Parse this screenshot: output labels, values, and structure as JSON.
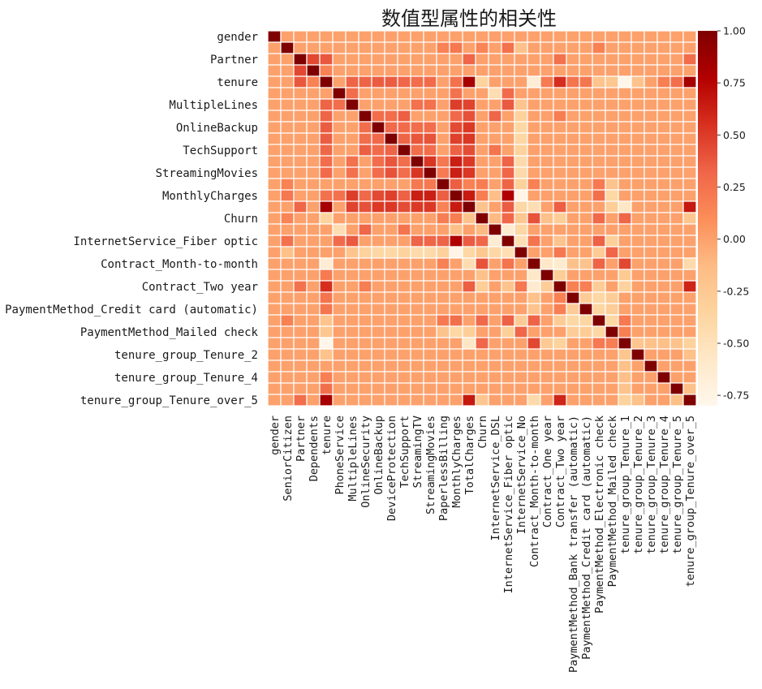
{
  "chart_data": {
    "type": "heatmap",
    "title": "数值型属性的相关性",
    "xlabel": "",
    "ylabel": "",
    "colormap": "OrRd",
    "colorbar_range": [
      -0.8,
      1.0
    ],
    "colorbar_ticks": [
      "1.00",
      "0.75",
      "0.50",
      "0.25",
      "0.00",
      "-0.25",
      "-0.50",
      "-0.75"
    ],
    "colorbar_tick_values": [
      1.0,
      0.75,
      0.5,
      0.25,
      0.0,
      -0.25,
      -0.5,
      -0.75
    ],
    "variables": [
      "gender",
      "SeniorCitizen",
      "Partner",
      "Dependents",
      "tenure",
      "PhoneService",
      "MultipleLines",
      "OnlineSecurity",
      "OnlineBackup",
      "DeviceProtection",
      "TechSupport",
      "StreamingTV",
      "StreamingMovies",
      "PaperlessBilling",
      "MonthlyCharges",
      "TotalCharges",
      "Churn",
      "InternetService_DSL",
      "InternetService_Fiber optic",
      "InternetService_No",
      "Contract_Month-to-month",
      "Contract_One year",
      "Contract_Two year",
      "PaymentMethod_Bank transfer (automatic)",
      "PaymentMethod_Credit card (automatic)",
      "PaymentMethod_Electronic check",
      "PaymentMethod_Mailed check",
      "tenure_group_Tenure_1",
      "tenure_group_Tenure_2",
      "tenure_group_Tenure_3",
      "tenure_group_Tenure_4",
      "tenure_group_Tenure_5",
      "tenure_group_Tenure_over_5"
    ],
    "y_tick_labels": [
      "gender",
      "Partner",
      "tenure",
      "MultipleLines",
      "OnlineBackup",
      "TechSupport",
      "StreamingMovies",
      "MonthlyCharges",
      "Churn",
      "InternetService_Fiber optic",
      "Contract_Month-to-month",
      "Contract_Two year",
      "PaymentMethod_Credit card (automatic)",
      "PaymentMethod_Mailed check",
      "tenure_group_Tenure_2",
      "tenure_group_Tenure_4",
      "tenure_group_Tenure_over_5"
    ],
    "y_tick_indices": [
      0,
      2,
      4,
      6,
      8,
      10,
      12,
      14,
      16,
      18,
      20,
      22,
      24,
      26,
      28,
      30,
      32
    ],
    "x_tick_labels": [
      "gender",
      "SeniorCitizen",
      "Partner",
      "Dependents",
      "tenure",
      "PhoneService",
      "MultipleLines",
      "OnlineSecurity",
      "OnlineBackup",
      "DeviceProtection",
      "TechSupport",
      "StreamingTV",
      "StreamingMovies",
      "PaperlessBilling",
      "MonthlyCharges",
      "TotalCharges",
      "Churn",
      "InternetService_DSL",
      "InternetService_Fiber optic",
      "InternetService_No",
      "Contract_Month-to-month",
      "Contract_One year",
      "Contract_Two year",
      "PaymentMethod_Bank transfer (automatic)",
      "PaymentMethod_Credit card (automatic)",
      "PaymentMethod_Electronic check",
      "PaymentMethod_Mailed check",
      "tenure_group_Tenure_1",
      "tenure_group_Tenure_2",
      "tenure_group_Tenure_3",
      "tenure_group_Tenure_4",
      "tenure_group_Tenure_5",
      "tenure_group_Tenure_over_5"
    ],
    "correlations": [
      {
        "a": "SeniorCitizen",
        "b": "PaperlessBilling",
        "r": 0.16
      },
      {
        "a": "SeniorCitizen",
        "b": "MonthlyCharges",
        "r": 0.22
      },
      {
        "a": "SeniorCitizen",
        "b": "Churn",
        "r": 0.15
      },
      {
        "a": "SeniorCitizen",
        "b": "InternetService_Fiber optic",
        "r": 0.26
      },
      {
        "a": "SeniorCitizen",
        "b": "InternetService_No",
        "r": -0.18
      },
      {
        "a": "SeniorCitizen",
        "b": "PaymentMethod_Electronic check",
        "r": 0.17
      },
      {
        "a": "Partner",
        "b": "Dependents",
        "r": 0.45
      },
      {
        "a": "Partner",
        "b": "tenure",
        "r": 0.38
      },
      {
        "a": "Partner",
        "b": "TotalCharges",
        "r": 0.32
      },
      {
        "a": "Partner",
        "b": "Contract_Two year",
        "r": 0.25
      },
      {
        "a": "Partner",
        "b": "tenure_group_Tenure_over_5",
        "r": 0.28
      },
      {
        "a": "Dependents",
        "b": "tenure",
        "r": 0.16
      },
      {
        "a": "tenure",
        "b": "MultipleLines",
        "r": 0.33
      },
      {
        "a": "tenure",
        "b": "OnlineSecurity",
        "r": 0.33
      },
      {
        "a": "tenure",
        "b": "OnlineBackup",
        "r": 0.36
      },
      {
        "a": "tenure",
        "b": "DeviceProtection",
        "r": 0.36
      },
      {
        "a": "tenure",
        "b": "TechSupport",
        "r": 0.32
      },
      {
        "a": "tenure",
        "b": "StreamingTV",
        "r": 0.28
      },
      {
        "a": "tenure",
        "b": "StreamingMovies",
        "r": 0.29
      },
      {
        "a": "tenure",
        "b": "MonthlyCharges",
        "r": 0.25
      },
      {
        "a": "tenure",
        "b": "TotalCharges",
        "r": 0.83
      },
      {
        "a": "tenure",
        "b": "Churn",
        "r": -0.35
      },
      {
        "a": "tenure",
        "b": "Contract_Month-to-month",
        "r": -0.65
      },
      {
        "a": "tenure",
        "b": "Contract_One year",
        "r": 0.2
      },
      {
        "a": "tenure",
        "b": "Contract_Two year",
        "r": 0.56
      },
      {
        "a": "tenure",
        "b": "PaymentMethod_Bank transfer (automatic)",
        "r": 0.24
      },
      {
        "a": "tenure",
        "b": "PaymentMethod_Credit card (automatic)",
        "r": 0.23
      },
      {
        "a": "tenure",
        "b": "PaymentMethod_Electronic check",
        "r": -0.21
      },
      {
        "a": "tenure",
        "b": "PaymentMethod_Mailed check",
        "r": -0.23
      },
      {
        "a": "tenure",
        "b": "tenure_group_Tenure_1",
        "r": -0.78
      },
      {
        "a": "tenure",
        "b": "tenure_group_Tenure_2",
        "r": -0.2
      },
      {
        "a": "tenure",
        "b": "tenure_group_Tenure_4",
        "r": 0.18
      },
      {
        "a": "tenure",
        "b": "tenure_group_Tenure_5",
        "r": 0.27
      },
      {
        "a": "tenure",
        "b": "tenure_group_Tenure_over_5",
        "r": 0.83
      },
      {
        "a": "PhoneService",
        "b": "MultipleLines",
        "r": 0.28
      },
      {
        "a": "PhoneService",
        "b": "InternetService_DSL",
        "r": -0.45
      },
      {
        "a": "PhoneService",
        "b": "InternetService_Fiber optic",
        "r": 0.29
      },
      {
        "a": "PhoneService",
        "b": "MonthlyCharges",
        "r": 0.25
      },
      {
        "a": "MultipleLines",
        "b": "StreamingTV",
        "r": 0.26
      },
      {
        "a": "MultipleLines",
        "b": "StreamingMovies",
        "r": 0.26
      },
      {
        "a": "MultipleLines",
        "b": "MonthlyCharges",
        "r": 0.49
      },
      {
        "a": "MultipleLines",
        "b": "TotalCharges",
        "r": 0.47
      },
      {
        "a": "MultipleLines",
        "b": "InternetService_Fiber optic",
        "r": 0.37
      },
      {
        "a": "MultipleLines",
        "b": "InternetService_No",
        "r": -0.21
      },
      {
        "a": "OnlineSecurity",
        "b": "OnlineBackup",
        "r": 0.28
      },
      {
        "a": "OnlineSecurity",
        "b": "DeviceProtection",
        "r": 0.28
      },
      {
        "a": "OnlineSecurity",
        "b": "TechSupport",
        "r": 0.35
      },
      {
        "a": "OnlineSecurity",
        "b": "TotalCharges",
        "r": 0.41
      },
      {
        "a": "OnlineSecurity",
        "b": "MonthlyCharges",
        "r": 0.3
      },
      {
        "a": "OnlineSecurity",
        "b": "InternetService_DSL",
        "r": 0.32
      },
      {
        "a": "OnlineSecurity",
        "b": "InternetService_No",
        "r": -0.33
      },
      {
        "a": "OnlineSecurity",
        "b": "Contract_Two year",
        "r": 0.19
      },
      {
        "a": "OnlineBackup",
        "b": "DeviceProtection",
        "r": 0.3
      },
      {
        "a": "OnlineBackup",
        "b": "TechSupport",
        "r": 0.29
      },
      {
        "a": "OnlineBackup",
        "b": "StreamingTV",
        "r": 0.28
      },
      {
        "a": "OnlineBackup",
        "b": "StreamingMovies",
        "r": 0.28
      },
      {
        "a": "OnlineBackup",
        "b": "MonthlyCharges",
        "r": 0.44
      },
      {
        "a": "OnlineBackup",
        "b": "TotalCharges",
        "r": 0.51
      },
      {
        "a": "OnlineBackup",
        "b": "InternetService_No",
        "r": -0.38
      },
      {
        "a": "DeviceProtection",
        "b": "TechSupport",
        "r": 0.33
      },
      {
        "a": "DeviceProtection",
        "b": "StreamingTV",
        "r": 0.39
      },
      {
        "a": "DeviceProtection",
        "b": "StreamingMovies",
        "r": 0.4
      },
      {
        "a": "DeviceProtection",
        "b": "MonthlyCharges",
        "r": 0.48
      },
      {
        "a": "DeviceProtection",
        "b": "TotalCharges",
        "r": 0.52
      },
      {
        "a": "DeviceProtection",
        "b": "InternetService_No",
        "r": -0.38
      },
      {
        "a": "TechSupport",
        "b": "StreamingTV",
        "r": 0.28
      },
      {
        "a": "TechSupport",
        "b": "StreamingMovies",
        "r": 0.28
      },
      {
        "a": "TechSupport",
        "b": "MonthlyCharges",
        "r": 0.34
      },
      {
        "a": "TechSupport",
        "b": "TotalCharges",
        "r": 0.43
      },
      {
        "a": "TechSupport",
        "b": "InternetService_DSL",
        "r": 0.24
      },
      {
        "a": "TechSupport",
        "b": "InternetService_No",
        "r": -0.34
      },
      {
        "a": "StreamingTV",
        "b": "StreamingMovies",
        "r": 0.53
      },
      {
        "a": "StreamingTV",
        "b": "PaperlessBilling",
        "r": 0.22
      },
      {
        "a": "StreamingTV",
        "b": "MonthlyCharges",
        "r": 0.63
      },
      {
        "a": "StreamingTV",
        "b": "TotalCharges",
        "r": 0.51
      },
      {
        "a": "StreamingTV",
        "b": "InternetService_Fiber optic",
        "r": 0.33
      },
      {
        "a": "StreamingTV",
        "b": "InternetService_No",
        "r": -0.42
      },
      {
        "a": "StreamingMovies",
        "b": "PaperlessBilling",
        "r": 0.21
      },
      {
        "a": "StreamingMovies",
        "b": "MonthlyCharges",
        "r": 0.63
      },
      {
        "a": "StreamingMovies",
        "b": "TotalCharges",
        "r": 0.52
      },
      {
        "a": "StreamingMovies",
        "b": "InternetService_Fiber optic",
        "r": 0.32
      },
      {
        "a": "StreamingMovies",
        "b": "InternetService_No",
        "r": -0.42
      },
      {
        "a": "PaperlessBilling",
        "b": "MonthlyCharges",
        "r": 0.35
      },
      {
        "a": "PaperlessBilling",
        "b": "TotalCharges",
        "r": 0.16
      },
      {
        "a": "PaperlessBilling",
        "b": "Churn",
        "r": 0.19
      },
      {
        "a": "PaperlessBilling",
        "b": "InternetService_Fiber optic",
        "r": 0.33
      },
      {
        "a": "PaperlessBilling",
        "b": "InternetService_No",
        "r": -0.32
      },
      {
        "a": "PaperlessBilling",
        "b": "Contract_Month-to-month",
        "r": 0.17
      },
      {
        "a": "PaperlessBilling",
        "b": "PaymentMethod_Electronic check",
        "r": 0.21
      },
      {
        "a": "PaperlessBilling",
        "b": "PaymentMethod_Mailed check",
        "r": -0.2
      },
      {
        "a": "MonthlyCharges",
        "b": "TotalCharges",
        "r": 0.65
      },
      {
        "a": "MonthlyCharges",
        "b": "Churn",
        "r": 0.19
      },
      {
        "a": "MonthlyCharges",
        "b": "InternetService_DSL",
        "r": -0.16
      },
      {
        "a": "MonthlyCharges",
        "b": "InternetService_Fiber optic",
        "r": 0.79
      },
      {
        "a": "MonthlyCharges",
        "b": "InternetService_No",
        "r": -0.76
      },
      {
        "a": "MonthlyCharges",
        "b": "PaymentMethod_Electronic check",
        "r": 0.27
      },
      {
        "a": "MonthlyCharges",
        "b": "PaymentMethod_Mailed check",
        "r": -0.38
      },
      {
        "a": "TotalCharges",
        "b": "Churn",
        "r": -0.2
      },
      {
        "a": "TotalCharges",
        "b": "InternetService_Fiber optic",
        "r": 0.36
      },
      {
        "a": "TotalCharges",
        "b": "InternetService_No",
        "r": -0.38
      },
      {
        "a": "TotalCharges",
        "b": "Contract_Month-to-month",
        "r": -0.45
      },
      {
        "a": "TotalCharges",
        "b": "Contract_Two year",
        "r": 0.35
      },
      {
        "a": "TotalCharges",
        "b": "PaymentMethod_Mailed check",
        "r": -0.3
      },
      {
        "a": "TotalCharges",
        "b": "tenure_group_Tenure_1",
        "r": -0.56
      },
      {
        "a": "TotalCharges",
        "b": "tenure_group_Tenure_over_5",
        "r": 0.66
      },
      {
        "a": "Churn",
        "b": "InternetService_DSL",
        "r": -0.12
      },
      {
        "a": "Churn",
        "b": "InternetService_Fiber optic",
        "r": 0.31
      },
      {
        "a": "Churn",
        "b": "InternetService_No",
        "r": -0.23
      },
      {
        "a": "Churn",
        "b": "Contract_Month-to-month",
        "r": 0.4
      },
      {
        "a": "Churn",
        "b": "Contract_One year",
        "r": -0.18
      },
      {
        "a": "Churn",
        "b": "Contract_Two year",
        "r": -0.3
      },
      {
        "a": "Churn",
        "b": "PaymentMethod_Electronic check",
        "r": 0.3
      },
      {
        "a": "Churn",
        "b": "tenure_group_Tenure_1",
        "r": 0.32
      },
      {
        "a": "Churn",
        "b": "tenure_group_Tenure_over_5",
        "r": -0.22
      },
      {
        "a": "InternetService_DSL",
        "b": "InternetService_Fiber optic",
        "r": -0.64
      },
      {
        "a": "InternetService_DSL",
        "b": "InternetService_No",
        "r": -0.38
      },
      {
        "a": "InternetService_Fiber optic",
        "b": "InternetService_No",
        "r": -0.47
      },
      {
        "a": "InternetService_Fiber optic",
        "b": "Contract_Month-to-month",
        "r": 0.24
      },
      {
        "a": "InternetService_Fiber optic",
        "b": "Contract_Two year",
        "r": -0.21
      },
      {
        "a": "InternetService_Fiber optic",
        "b": "PaymentMethod_Electronic check",
        "r": 0.34
      },
      {
        "a": "InternetService_Fiber optic",
        "b": "PaymentMethod_Mailed check",
        "r": -0.31
      },
      {
        "a": "InternetService_No",
        "b": "Contract_Two year",
        "r": 0.22
      },
      {
        "a": "InternetService_No",
        "b": "PaymentMethod_Electronic check",
        "r": -0.28
      },
      {
        "a": "InternetService_No",
        "b": "PaymentMethod_Mailed check",
        "r": 0.32
      },
      {
        "a": "Contract_Month-to-month",
        "b": "Contract_One year",
        "r": -0.57
      },
      {
        "a": "Contract_Month-to-month",
        "b": "Contract_Two year",
        "r": -0.62
      },
      {
        "a": "Contract_Month-to-month",
        "b": "PaymentMethod_Bank transfer (automatic)",
        "r": -0.18
      },
      {
        "a": "Contract_Month-to-month",
        "b": "PaymentMethod_Credit card (automatic)",
        "r": -0.2
      },
      {
        "a": "Contract_Month-to-month",
        "b": "PaymentMethod_Electronic check",
        "r": 0.33
      },
      {
        "a": "Contract_Month-to-month",
        "b": "tenure_group_Tenure_1",
        "r": 0.45
      },
      {
        "a": "Contract_Month-to-month",
        "b": "tenure_group_Tenure_over_5",
        "r": -0.42
      },
      {
        "a": "Contract_One year",
        "b": "Contract_Two year",
        "r": -0.29
      },
      {
        "a": "Contract_One year",
        "b": "tenure_group_Tenure_1",
        "r": -0.26
      },
      {
        "a": "Contract_Two year",
        "b": "PaymentMethod_Bank transfer (automatic)",
        "r": 0.17
      },
      {
        "a": "Contract_Two year",
        "b": "PaymentMethod_Credit card (automatic)",
        "r": 0.18
      },
      {
        "a": "Contract_Two year",
        "b": "PaymentMethod_Electronic check",
        "r": -0.28
      },
      {
        "a": "Contract_Two year",
        "b": "tenure_group_Tenure_1",
        "r": -0.33
      },
      {
        "a": "Contract_Two year",
        "b": "tenure_group_Tenure_over_5",
        "r": 0.6
      },
      {
        "a": "PaymentMethod_Bank transfer (automatic)",
        "b": "PaymentMethod_Credit card (automatic)",
        "r": -0.28
      },
      {
        "a": "PaymentMethod_Bank transfer (automatic)",
        "b": "PaymentMethod_Electronic check",
        "r": -0.38
      },
      {
        "a": "PaymentMethod_Bank transfer (automatic)",
        "b": "PaymentMethod_Mailed check",
        "r": -0.29
      },
      {
        "a": "PaymentMethod_Credit card (automatic)",
        "b": "PaymentMethod_Electronic check",
        "r": -0.37
      },
      {
        "a": "PaymentMethod_Credit card (automatic)",
        "b": "PaymentMethod_Mailed check",
        "r": -0.29
      },
      {
        "a": "PaymentMethod_Electronic check",
        "b": "PaymentMethod_Mailed check",
        "r": -0.39
      },
      {
        "a": "PaymentMethod_Electronic check",
        "b": "tenure_group_Tenure_1",
        "r": 0.21
      },
      {
        "a": "PaymentMethod_Mailed check",
        "b": "tenure_group_Tenure_1",
        "r": 0.18
      },
      {
        "a": "tenure_group_Tenure_1",
        "b": "tenure_group_Tenure_2",
        "r": -0.22
      },
      {
        "a": "tenure_group_Tenure_1",
        "b": "tenure_group_Tenure_3",
        "r": -0.18
      },
      {
        "a": "tenure_group_Tenure_1",
        "b": "tenure_group_Tenure_4",
        "r": -0.17
      },
      {
        "a": "tenure_group_Tenure_1",
        "b": "tenure_group_Tenure_5",
        "r": -0.2
      },
      {
        "a": "tenure_group_Tenure_1",
        "b": "tenure_group_Tenure_over_5",
        "r": -0.33
      },
      {
        "a": "tenure_group_Tenure_2",
        "b": "tenure_group_Tenure_over_5",
        "r": -0.18
      },
      {
        "a": "tenure_group_Tenure_5",
        "b": "tenure_group_Tenure_over_5",
        "r": -0.17
      }
    ]
  }
}
